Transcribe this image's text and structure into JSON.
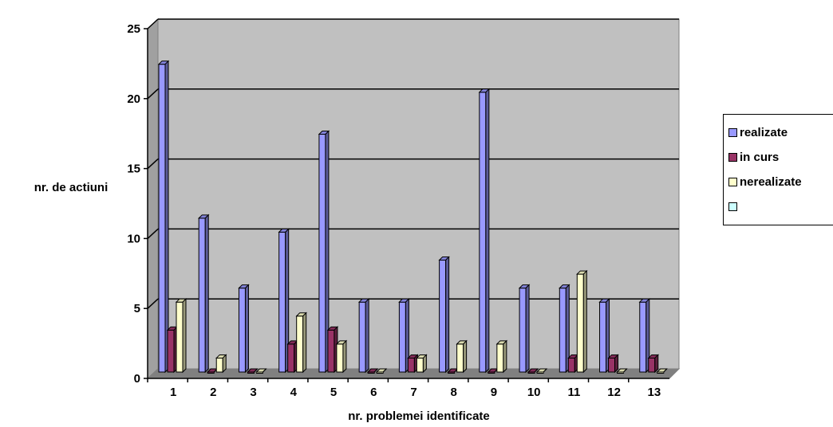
{
  "chart_data": {
    "type": "bar",
    "title": "",
    "xlabel": "nr. problemei identificate",
    "ylabel": "nr. de actiuni",
    "categories": [
      "1",
      "2",
      "3",
      "4",
      "5",
      "6",
      "7",
      "8",
      "9",
      "10",
      "11",
      "12",
      "13"
    ],
    "ylim": [
      0,
      25
    ],
    "yticks": [
      "0",
      "5",
      "10",
      "15",
      "20",
      "25"
    ],
    "grid": true,
    "legend_position": "right",
    "plot_background": "#c0c0c0",
    "series": [
      {
        "name": "realizate",
        "color": "#9999ff",
        "values": [
          22,
          11,
          6,
          10,
          17,
          5,
          5,
          8,
          20,
          6,
          6,
          5,
          5
        ]
      },
      {
        "name": "in curs",
        "color": "#993366",
        "values": [
          3,
          0,
          0,
          2,
          3,
          0,
          1,
          0,
          0,
          0,
          1,
          1,
          1
        ]
      },
      {
        "name": "nerealizate",
        "color": "#ffffcc",
        "values": [
          5,
          1,
          0,
          4,
          2,
          0,
          1,
          2,
          2,
          0,
          7,
          0,
          0
        ]
      },
      {
        "name": "",
        "color": "#ccffff",
        "values": [
          0,
          0,
          0,
          0,
          0,
          0,
          0,
          0,
          0,
          0,
          0,
          0,
          0
        ]
      }
    ]
  }
}
